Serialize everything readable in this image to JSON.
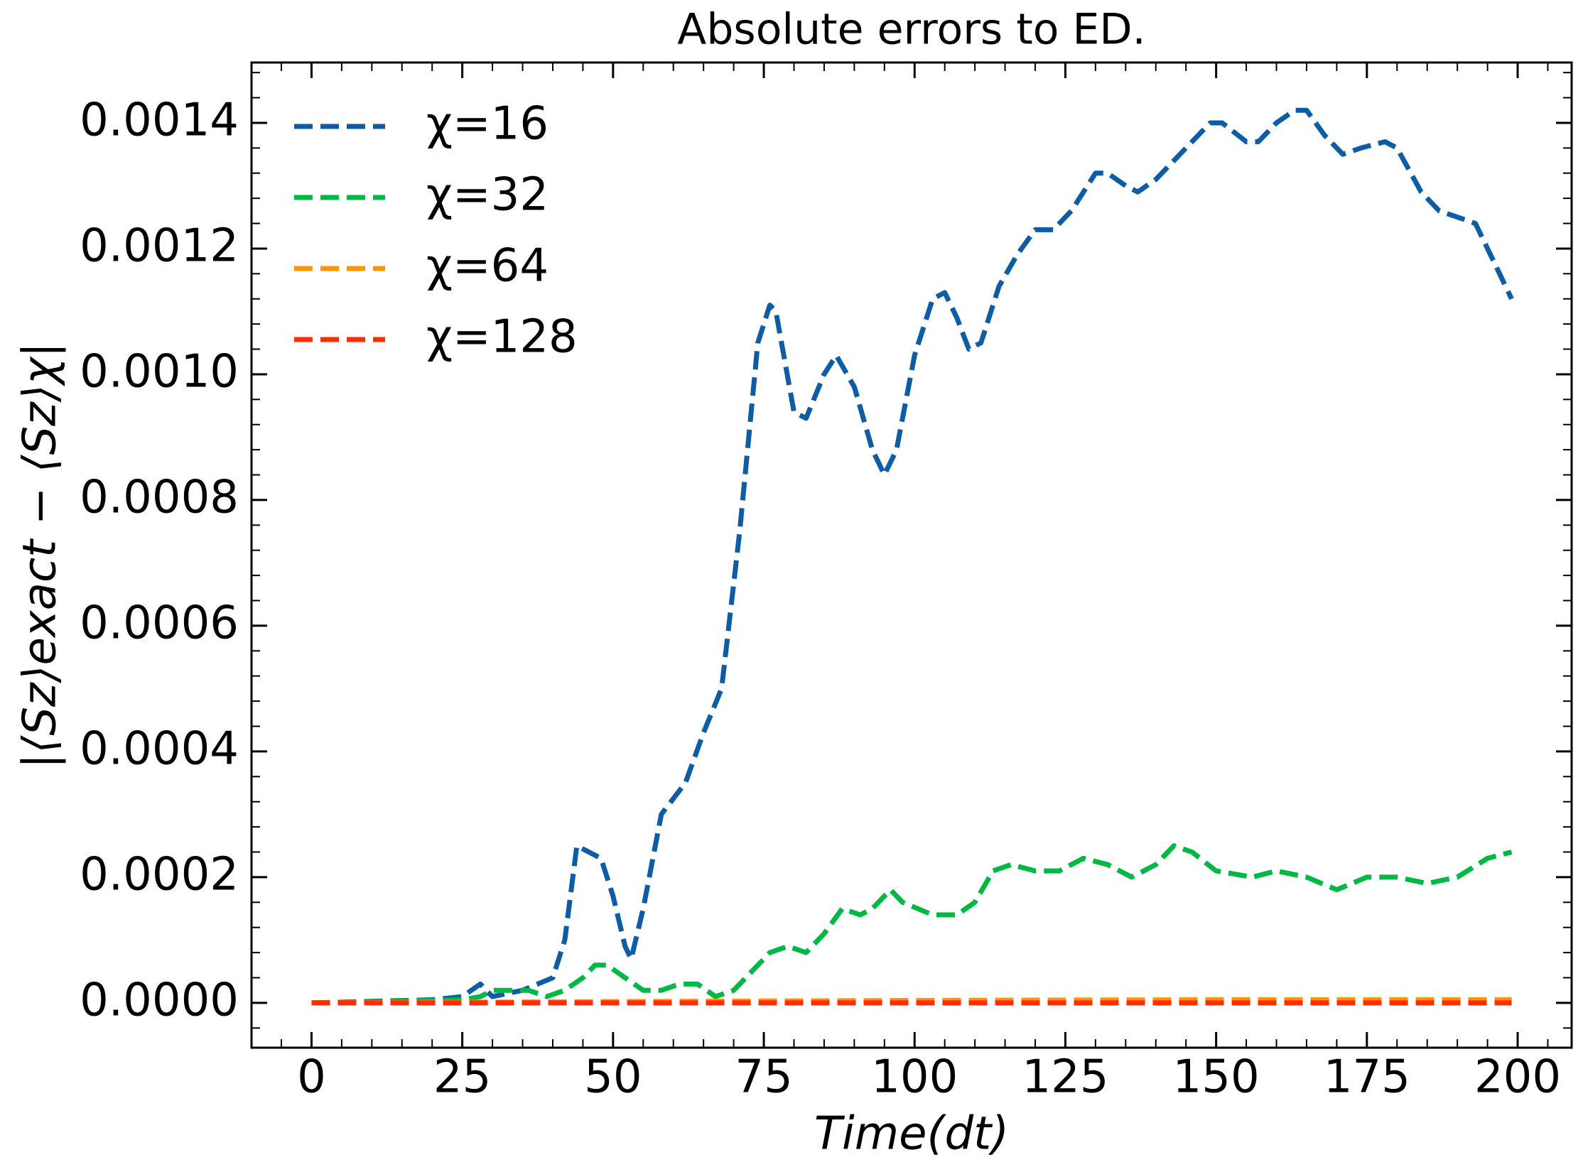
{
  "chart_data": {
    "type": "line",
    "title": "Absolute errors to ED.",
    "xlabel": "Time(dt)",
    "ylabel": "|⟨Sz⟩exact − ⟨Sz⟩χ|",
    "xlim": [
      -9.95,
      208.95
    ],
    "ylim": [
      -7.13e-05,
      0.001496
    ],
    "xticks": [
      0,
      25,
      50,
      75,
      100,
      125,
      150,
      175,
      200
    ],
    "yticks": [
      {
        "value": 0,
        "label": "0.0000"
      },
      {
        "value": 0.0002,
        "label": "0.0002"
      },
      {
        "value": 0.0004,
        "label": "0.0004"
      },
      {
        "value": 0.0006,
        "label": "0.0006"
      },
      {
        "value": 0.0008,
        "label": "0.0008"
      },
      {
        "value": 0.001,
        "label": "0.0010"
      },
      {
        "value": 0.0012,
        "label": "0.0012"
      },
      {
        "value": 0.0014,
        "label": "0.0014"
      }
    ],
    "minor_ticks": 5,
    "ticks_inside": true,
    "legend": "upper left",
    "series": [
      {
        "name": "χ=16",
        "color": "#0C5DA5",
        "x": [
          0,
          20,
          25,
          28,
          30,
          35,
          40,
          42,
          44,
          48,
          50,
          52,
          53,
          55,
          58,
          62,
          65,
          68,
          71,
          74,
          76,
          77,
          80,
          82,
          85,
          87,
          90,
          93,
          95,
          97,
          100,
          103,
          105,
          107,
          109,
          111,
          114,
          117,
          120,
          123,
          126,
          130,
          132,
          135,
          137,
          140,
          145,
          149,
          151,
          155,
          157,
          160,
          163,
          165,
          168,
          171,
          174,
          178,
          180,
          184,
          187,
          190,
          193,
          196,
          199
        ],
        "values": [
          0,
          5e-06,
          1e-05,
          3e-05,
          1e-05,
          2e-05,
          4e-05,
          0.0001,
          0.00025,
          0.00023,
          0.00017,
          9e-05,
          7e-05,
          0.00015,
          0.0003,
          0.00035,
          0.00043,
          0.0005,
          0.00075,
          0.00105,
          0.00111,
          0.0011,
          0.00094,
          0.00093,
          0.001,
          0.00103,
          0.00098,
          0.00088,
          0.00084,
          0.00088,
          0.00103,
          0.00112,
          0.00113,
          0.00109,
          0.00104,
          0.00105,
          0.00114,
          0.00119,
          0.00123,
          0.00123,
          0.00126,
          0.00132,
          0.00132,
          0.0013,
          0.00129,
          0.00131,
          0.00136,
          0.0014,
          0.0014,
          0.00137,
          0.00137,
          0.0014,
          0.00142,
          0.00142,
          0.00138,
          0.00135,
          0.00136,
          0.00137,
          0.00136,
          0.00129,
          0.00126,
          0.00125,
          0.00124,
          0.00118,
          0.00112
        ]
      },
      {
        "name": "χ=32",
        "color": "#00B945",
        "x": [
          0,
          25,
          28,
          30,
          36,
          39,
          42,
          45,
          47,
          49,
          52,
          55,
          58,
          61,
          64,
          67,
          70,
          73,
          76,
          79,
          82,
          85,
          88,
          91,
          93,
          96,
          98,
          103,
          107,
          110,
          113,
          116,
          120,
          124,
          128,
          132,
          136,
          140,
          143,
          146,
          150,
          156,
          160,
          165,
          170,
          175,
          180,
          185,
          190,
          195,
          199
        ],
        "values": [
          0,
          5e-06,
          1e-05,
          2e-05,
          2e-05,
          1e-05,
          2e-05,
          4e-05,
          6e-05,
          6e-05,
          4e-05,
          2e-05,
          2e-05,
          3e-05,
          3e-05,
          1e-05,
          2e-05,
          5e-05,
          8e-05,
          9e-05,
          8e-05,
          0.00011,
          0.00015,
          0.00014,
          0.00015,
          0.00018,
          0.00016,
          0.00014,
          0.00014,
          0.00016,
          0.00021,
          0.00022,
          0.00021,
          0.00021,
          0.00023,
          0.00022,
          0.0002,
          0.00022,
          0.00025,
          0.00024,
          0.00021,
          0.0002,
          0.00021,
          0.0002,
          0.00018,
          0.0002,
          0.0002,
          0.00019,
          0.0002,
          0.00023,
          0.00024
        ]
      },
      {
        "name": "χ=64",
        "color": "#FF9500",
        "x": [
          0,
          50,
          100,
          150,
          199
        ],
        "values": [
          0,
          2e-06,
          4e-06,
          5e-06,
          5e-06
        ]
      },
      {
        "name": "χ=128",
        "color": "#FF2C00",
        "x": [
          0,
          199
        ],
        "values": [
          0,
          0
        ]
      }
    ]
  }
}
